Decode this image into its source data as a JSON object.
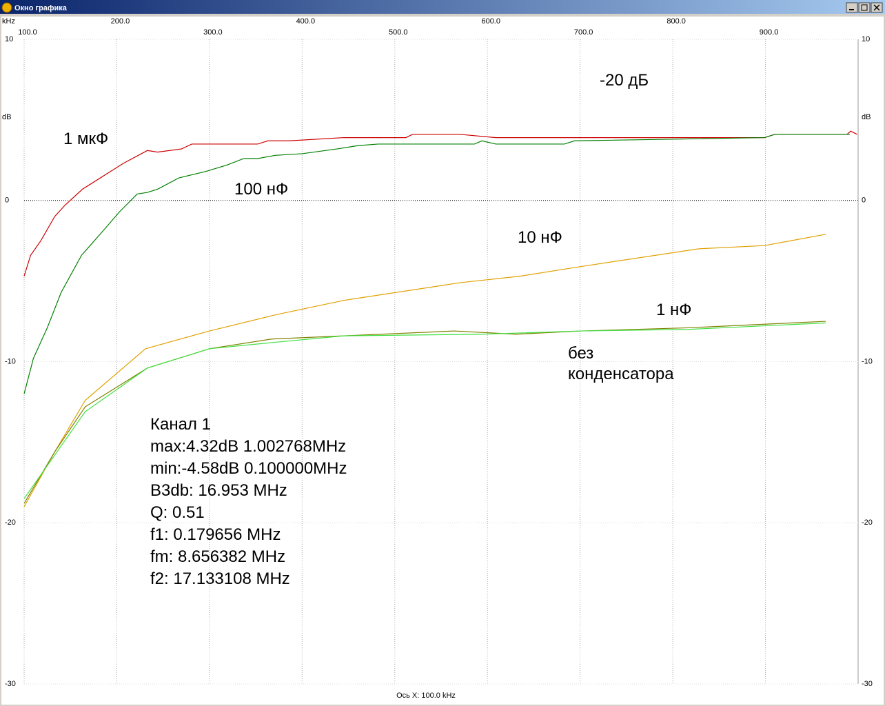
{
  "window": {
    "title": "Окно графика"
  },
  "chart_data": {
    "type": "line",
    "x_unit": "kHz",
    "y_unit": "dB",
    "x_label": "Ось X: 100.0 kHz",
    "xlim": [
      100,
      1000
    ],
    "xticks": [
      {
        "value": 100,
        "label": "100.0"
      },
      {
        "value": 200,
        "label": "200.0"
      },
      {
        "value": 300,
        "label": "300.0"
      },
      {
        "value": 400,
        "label": "400.0"
      },
      {
        "value": 500,
        "label": "500.0"
      },
      {
        "value": 600,
        "label": "600.0"
      },
      {
        "value": 700,
        "label": "700.0"
      },
      {
        "value": 800,
        "label": "800.0"
      },
      {
        "value": 900,
        "label": "900.0"
      }
    ],
    "ylim": [
      -30,
      10
    ],
    "yticks": [
      -30,
      -20,
      -10,
      0,
      10
    ],
    "grid": true,
    "series": [
      {
        "name": "1 мкФ",
        "color": "#cc0000",
        "x": [
          100,
          107,
          118,
          133,
          144,
          163,
          185,
          207,
          233,
          244,
          270,
          281,
          352,
          363,
          386,
          445,
          512,
          519,
          571,
          609,
          899,
          910,
          988,
          992,
          999
        ],
        "values": [
          -4.7,
          -3.4,
          -2.5,
          -1.0,
          -0.3,
          0.7,
          1.5,
          2.3,
          3.1,
          3.0,
          3.2,
          3.5,
          3.5,
          3.7,
          3.7,
          3.9,
          3.9,
          4.1,
          4.1,
          3.9,
          3.9,
          4.1,
          4.1,
          4.3,
          4.1
        ]
      },
      {
        "name": "100 нФ",
        "color": "#008000",
        "x": [
          100,
          110,
          125,
          140,
          162,
          185,
          203,
          222,
          233,
          244,
          267,
          296,
          319,
          337,
          352,
          371,
          400,
          438,
          460,
          482,
          586,
          594,
          609,
          683,
          694,
          798,
          899,
          910,
          991
        ],
        "values": [
          -12.0,
          -9.8,
          -7.9,
          -5.7,
          -3.4,
          -1.9,
          -0.7,
          0.4,
          0.5,
          0.7,
          1.4,
          1.8,
          2.2,
          2.6,
          2.6,
          2.8,
          2.9,
          3.2,
          3.4,
          3.5,
          3.5,
          3.7,
          3.5,
          3.5,
          3.7,
          3.8,
          3.9,
          4.1,
          4.1
        ]
      },
      {
        "name": "10 нФ",
        "color": "#e0a000",
        "x": [
          100,
          133,
          166,
          231,
          300,
          371,
          445,
          571,
          635,
          701,
          828,
          899,
          965
        ],
        "values": [
          -19.0,
          -15.6,
          -12.4,
          -9.2,
          -8.1,
          -7.1,
          -6.2,
          -5.1,
          -4.7,
          -4.1,
          -3.0,
          -2.8,
          -2.1
        ]
      },
      {
        "name": "1 нФ",
        "color": "#808000",
        "x": [
          100,
          133,
          166,
          233,
          300,
          367,
          445,
          564,
          631,
          701,
          817,
          965
        ],
        "values": [
          -18.8,
          -15.6,
          -12.8,
          -10.4,
          -9.2,
          -8.6,
          -8.4,
          -8.1,
          -8.3,
          -8.1,
          -7.9,
          -7.5
        ]
      },
      {
        "name": "без конденсатора",
        "color": "#40e040",
        "x": [
          100,
          133,
          166,
          233,
          300,
          371,
          445,
          594,
          701,
          817,
          965
        ],
        "values": [
          -18.5,
          -15.8,
          -13.1,
          -10.4,
          -9.2,
          -8.8,
          -8.4,
          -8.3,
          -8.1,
          -8.0,
          -7.6
        ]
      }
    ],
    "annotations": [
      "-20 дБ"
    ],
    "info": [
      "Канал 1",
      "max:4.32dB 1.002768MHz",
      "min:-4.58dB 0.100000MHz",
      "B3db: 16.953 MHz",
      "Q: 0.51",
      "f1: 0.179656 MHz",
      "fm: 8.656382 MHz",
      "f2: 17.133108 MHz"
    ]
  }
}
